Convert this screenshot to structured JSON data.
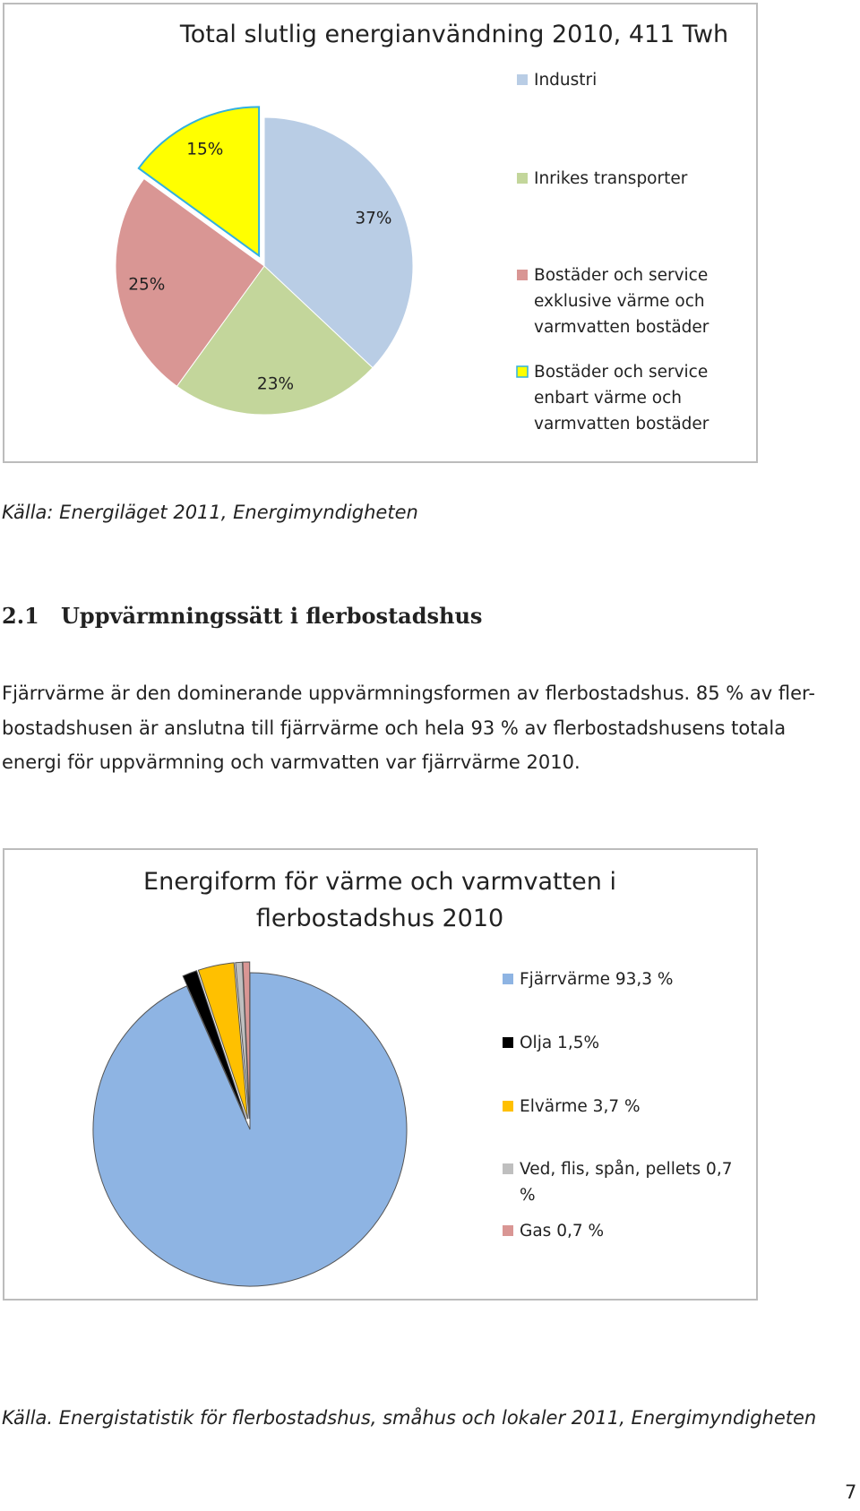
{
  "chart_data": [
    {
      "type": "pie",
      "title": "Total slutlig energianvändning 2010, 411 Twh",
      "categories": [
        "Industri",
        "Inrikes transporter",
        "Bostäder och service exklusive värme och varmvatten bostäder",
        "Bostäder och service enbart värme och varmvatten bostäder"
      ],
      "values": [
        37,
        23,
        25,
        15
      ],
      "value_labels": [
        "37%",
        "23%",
        "25%",
        "15%"
      ],
      "colors": [
        "#b9cde5",
        "#c3d69b",
        "#d99694",
        "#ffff00"
      ]
    },
    {
      "type": "pie",
      "title": "Energiform för värme och varmvatten i flerbostadshus 2010",
      "categories": [
        "Fjärrvärme 93,3 %",
        "Olja 1,5%",
        "Elvärme 3,7 %",
        "Ved, flis, spån, pellets 0,7 %",
        "Gas 0,7 %"
      ],
      "values": [
        93.3,
        1.5,
        3.7,
        0.7,
        0.7
      ],
      "colors": [
        "#8eb4e3",
        "#000000",
        "#ffc000",
        "#bfbfbf",
        "#d99694"
      ]
    }
  ],
  "document": {
    "source_1": "Källa: Energiläget 2011, Energimyndigheten",
    "heading_number": "2.1",
    "heading": "Uppvärmningssätt i flerbostadshus",
    "paragraph_lines": [
      "Fjärrvärme är den dominerande uppvärmningsformen av flerbostadshus. 85 % av fler-",
      "bostadshusen är anslutna till fjärrvärme och hela 93 % av flerbostadshusens totala",
      "energi för uppvärmning och varmvatten var fjärrvärme 2010."
    ],
    "source_2": "Källa. Energistatistik för flerbostadshus, småhus och lokaler 2011, Energimyndigheten",
    "page_number": "7"
  }
}
